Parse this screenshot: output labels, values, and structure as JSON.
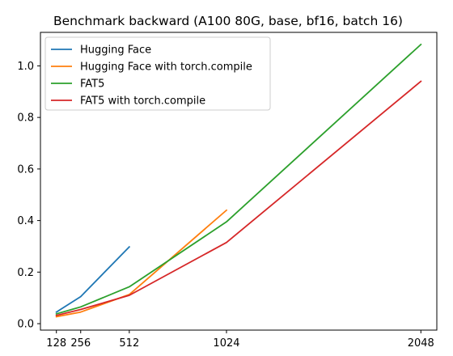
{
  "chart_data": {
    "type": "line",
    "title": "Benchmark backward (A100 80G, base, bf16, batch 16)",
    "xlabel": "",
    "ylabel": "",
    "x_ticks": [
      128,
      256,
      512,
      1024,
      2048
    ],
    "x_tick_labels": [
      "128",
      "256",
      "512",
      "1024",
      "2048"
    ],
    "y_ticks": [
      0.0,
      0.2,
      0.4,
      0.6,
      0.8,
      1.0
    ],
    "y_tick_labels": [
      "0.0",
      "0.2",
      "0.4",
      "0.6",
      "0.8",
      "1.0"
    ],
    "xlim": [
      44,
      2132
    ],
    "ylim": [
      -0.025,
      1.13
    ],
    "grid": false,
    "legend_position": "upper-left",
    "series": [
      {
        "name": "Hugging Face",
        "color": "#1f77b4",
        "x": [
          128,
          256,
          512
        ],
        "y": [
          0.045,
          0.105,
          0.298
        ]
      },
      {
        "name": "Hugging Face with torch.compile",
        "color": "#ff7f0e",
        "x": [
          128,
          256,
          512,
          1024
        ],
        "y": [
          0.027,
          0.045,
          0.113,
          0.44
        ]
      },
      {
        "name": "FAT5",
        "color": "#2ca02c",
        "x": [
          128,
          256,
          512,
          1024,
          2048
        ],
        "y": [
          0.038,
          0.065,
          0.143,
          0.395,
          1.083
        ]
      },
      {
        "name": "FAT5 with torch.compile",
        "color": "#d62728",
        "x": [
          128,
          256,
          512,
          1024,
          2048
        ],
        "y": [
          0.032,
          0.055,
          0.11,
          0.315,
          0.94
        ]
      }
    ]
  }
}
